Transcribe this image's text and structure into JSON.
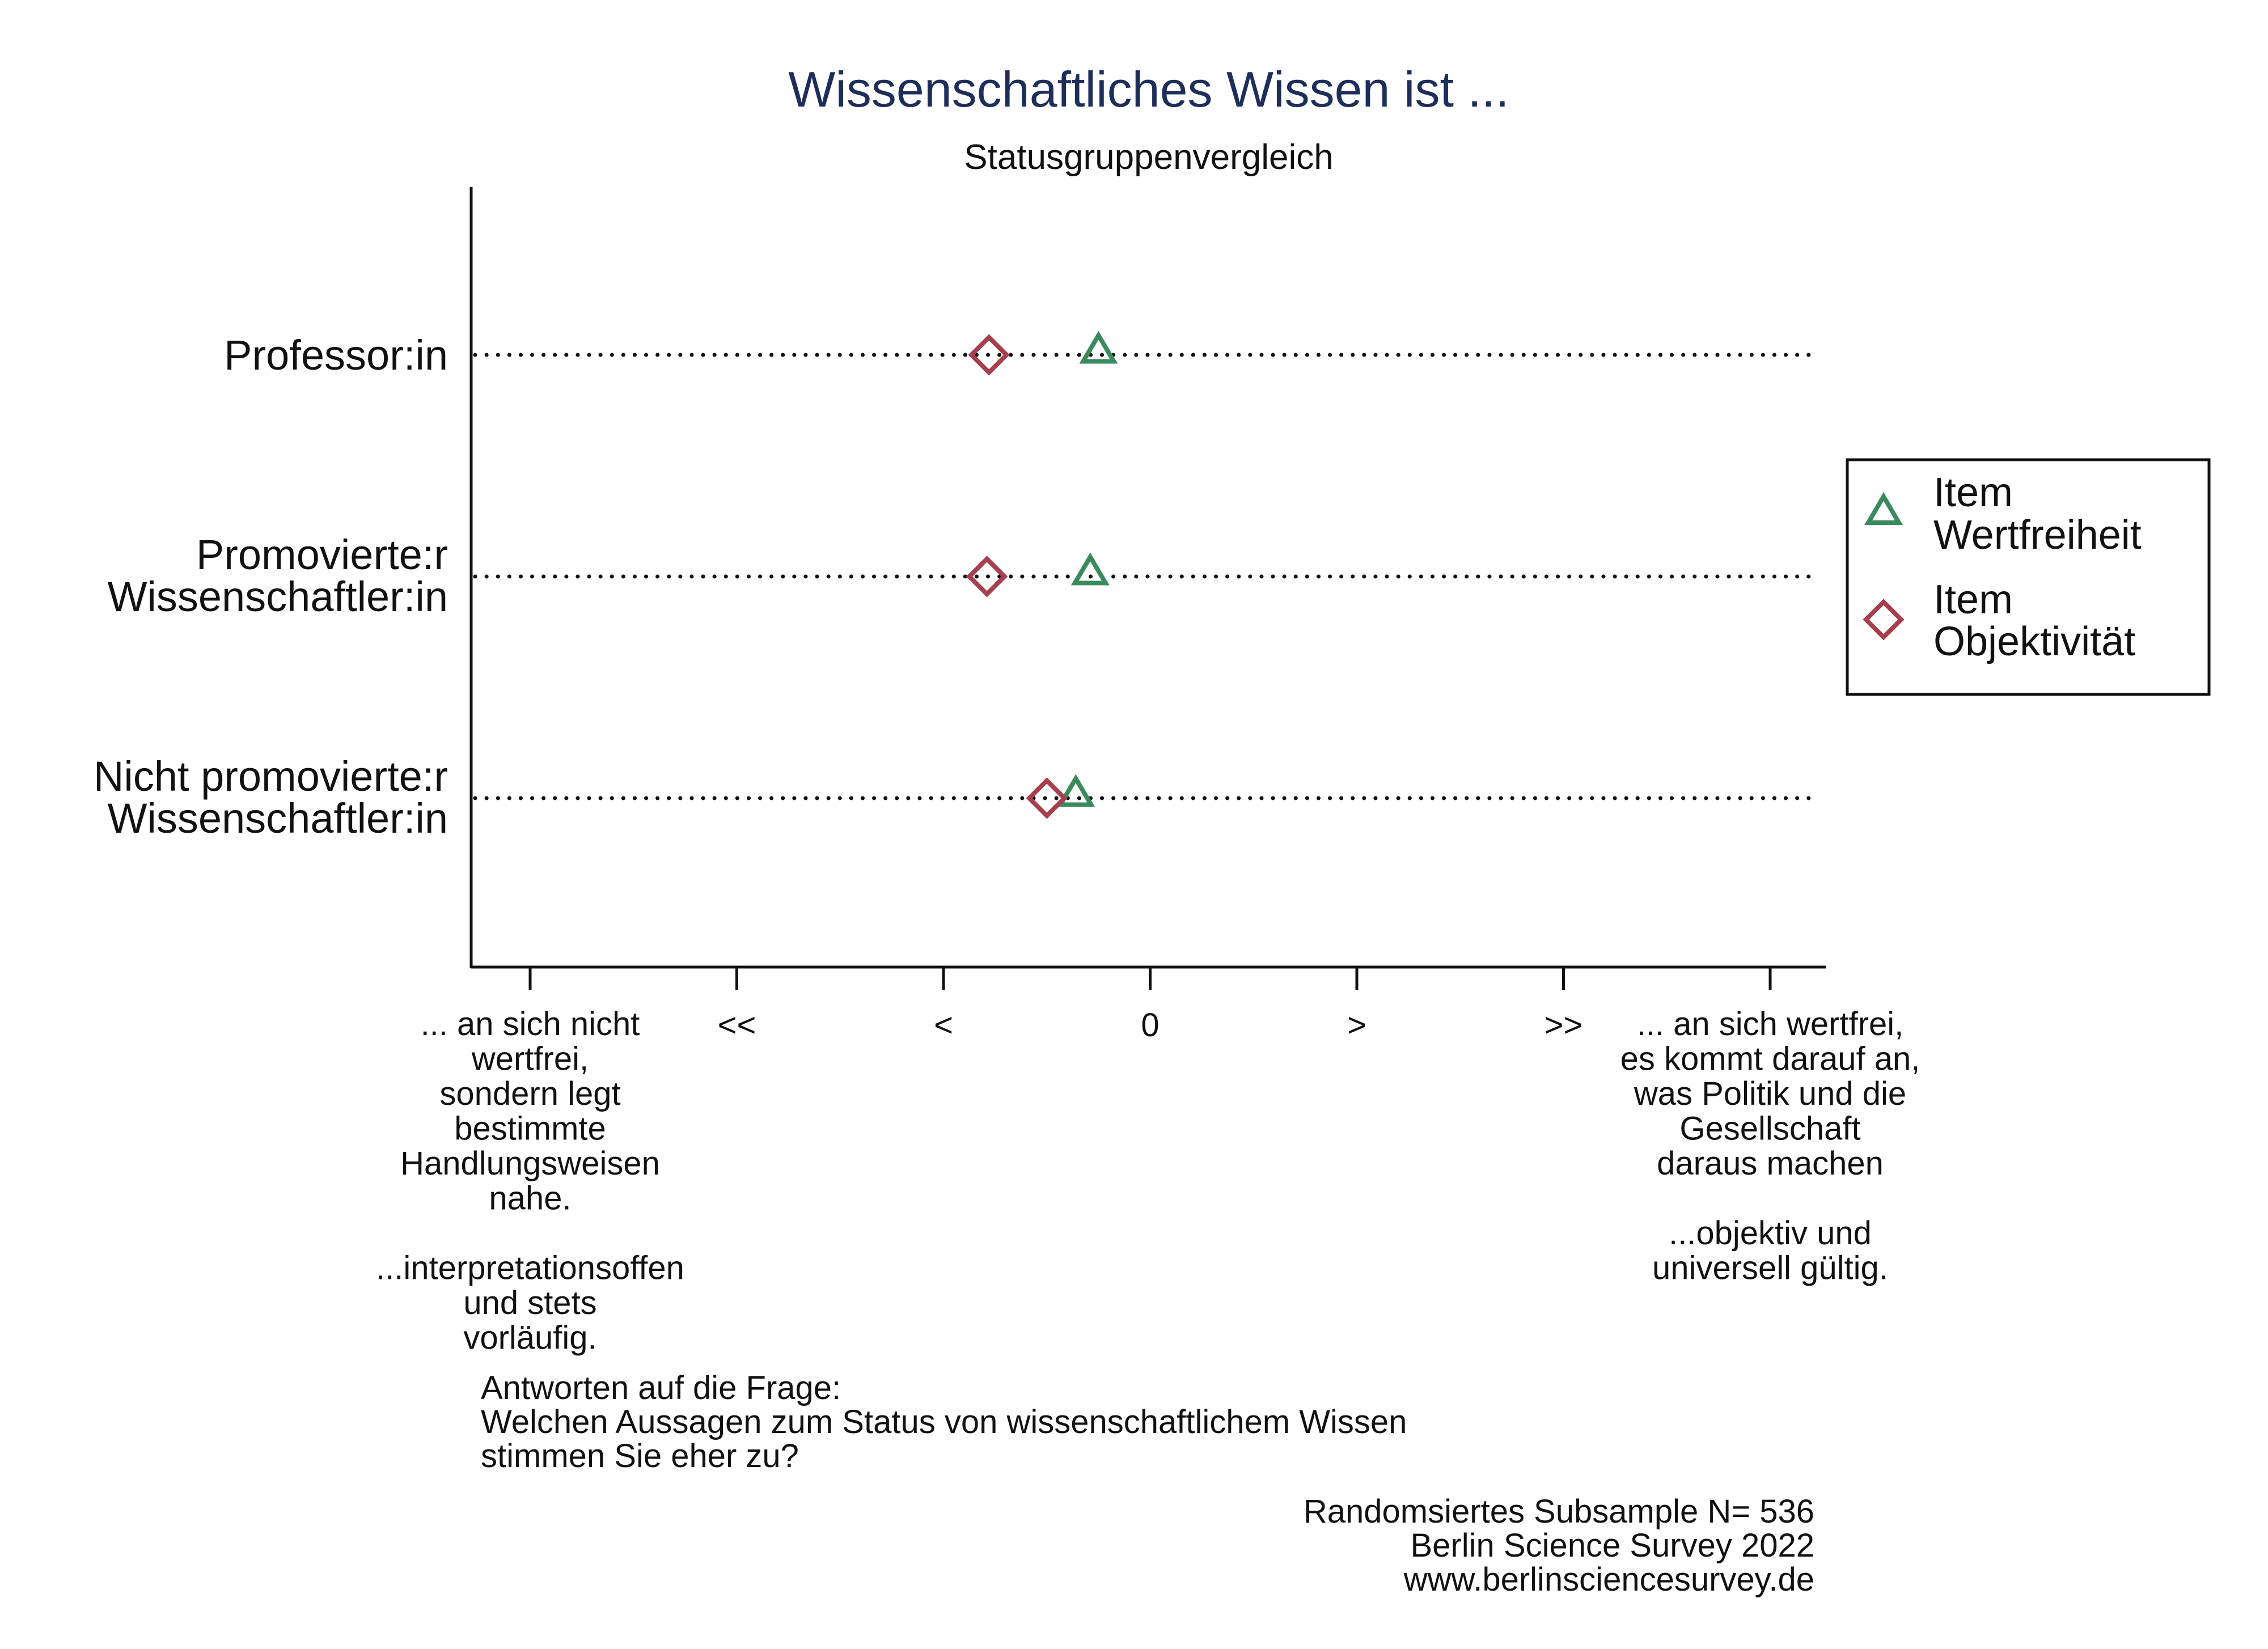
{
  "chart_data": {
    "type": "scatter",
    "title": "Wissenschaftliches Wissen ist ...",
    "subtitle": "Statusgruppenvergleich",
    "categories": [
      [
        "Professor:in"
      ],
      [
        "Promovierte:r",
        "Wissenschaftler:in"
      ],
      [
        "Nicht promovierte:r",
        "Wissenschaftler:in"
      ]
    ],
    "x_ticks": [
      {
        "value": -3,
        "label": ""
      },
      {
        "value": -2,
        "label": "<<"
      },
      {
        "value": -1,
        "label": "<"
      },
      {
        "value": 0,
        "label": "0"
      },
      {
        "value": 1,
        "label": ">"
      },
      {
        "value": 2,
        "label": ">>"
      },
      {
        "value": 3,
        "label": ""
      }
    ],
    "xlim": [
      -3.3,
      3.3
    ],
    "xlabel_left": [
      "... an sich nicht",
      "wertfrei,",
      "sondern legt",
      "bestimmte",
      "Handlungsweisen",
      "nahe.",
      "",
      "...interpretationsoffen",
      "und stets",
      "vorläufig."
    ],
    "xlabel_right": [
      "... an sich wertfrei,",
      "es kommt darauf an,",
      "was Politik und die",
      "Gesellschaft",
      "daraus machen",
      "",
      "...objektiv und",
      "universell gültig."
    ],
    "series": [
      {
        "name": "Item Wertfreiheit",
        "legend_lines": [
          "Item",
          "Wertfreiheit"
        ],
        "marker": "triangle",
        "color": "#3b8a5e",
        "values": [
          -0.25,
          -0.29,
          -0.36
        ]
      },
      {
        "name": "Item Objektivität",
        "legend_lines": [
          "Item",
          "Objektivität"
        ],
        "marker": "diamond",
        "color": "#a6404e",
        "values": [
          -0.78,
          -0.79,
          -0.5
        ]
      }
    ],
    "legend_position": "right",
    "grid": false,
    "guide_lines": "dotted horizontal per category"
  },
  "notes": {
    "question": [
      "Antworten auf die Frage:",
      "Welchen Aussagen zum Status von wissenschaftlichem Wissen",
      "stimmen Sie eher zu?"
    ],
    "source": [
      "Randomsiertes Subsample N= 536",
      "Berlin Science Survey 2022",
      "www.berlinsciencesurvey.de"
    ]
  }
}
